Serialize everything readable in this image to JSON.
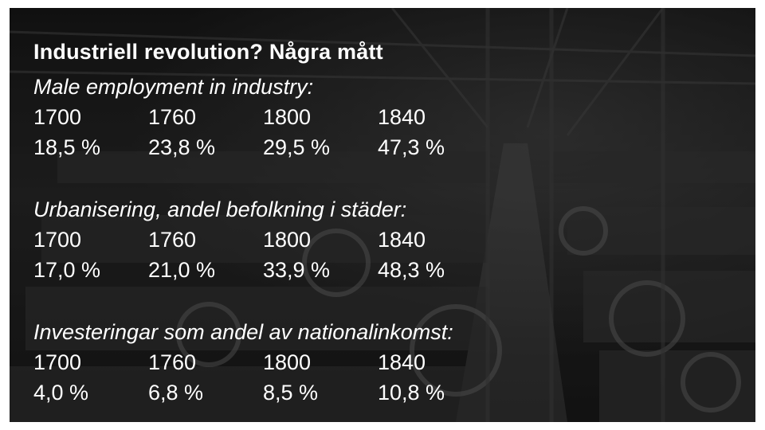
{
  "title": "Industriell revolution? Några mått",
  "sections": [
    {
      "heading": "Male employment in industry:",
      "years": [
        "1700",
        "1760",
        "1800",
        "1840"
      ],
      "values": [
        "18,5 %",
        "23,8 %",
        "29,5 %",
        "47,3 %"
      ]
    },
    {
      "heading": "Urbanisering, andel befolkning i städer:",
      "years": [
        "1700",
        "1760",
        "1800",
        "1840"
      ],
      "values": [
        "17,0 %",
        "21,0 %",
        "33,9 %",
        "48,3 %"
      ]
    },
    {
      "heading": "Investeringar som andel av nationalinkomst:",
      "years": [
        "1700",
        "1760",
        "1800",
        "1840"
      ],
      "values": [
        "4,0 %",
        "6,8 %",
        "8,5 %",
        "10,8 %"
      ]
    }
  ]
}
